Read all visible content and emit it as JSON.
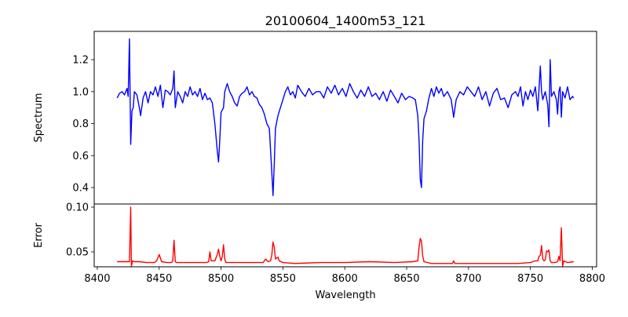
{
  "chart_data": {
    "type": "line",
    "title": "20100604_1400m53_121",
    "xlabel": "Wavelength",
    "xlim": [
      8397.5,
      8803.5
    ],
    "xticks": [
      8400,
      8450,
      8500,
      8550,
      8600,
      8650,
      8700,
      8750,
      8800
    ],
    "xtick_labels": [
      "8400",
      "8450",
      "8500",
      "8550",
      "8600",
      "8650",
      "8700",
      "8750",
      "8800"
    ],
    "panels": [
      {
        "ylabel": "Spectrum",
        "ylim": [
          0.297,
          1.377
        ],
        "yticks": [
          0.4,
          0.6,
          0.8,
          1.0,
          1.2
        ],
        "ytick_labels": [
          "0.4",
          "0.6",
          "0.8",
          "1.0",
          "1.2"
        ],
        "color": "#0000ff",
        "x": [
          8416,
          8418,
          8420,
          8422,
          8424,
          8425,
          8426,
          8427,
          8428,
          8429,
          8430,
          8432,
          8434,
          8435,
          8437,
          8439,
          8441,
          8443,
          8445,
          8447,
          8449,
          8451,
          8453,
          8455,
          8457,
          8459,
          8461,
          8462,
          8463,
          8465,
          8467,
          8469,
          8471,
          8473,
          8475,
          8477,
          8479,
          8481,
          8483,
          8485,
          8487,
          8489,
          8491,
          8493,
          8495,
          8497,
          8498,
          8499,
          8500,
          8502,
          8503,
          8505,
          8507,
          8509,
          8511,
          8513,
          8515,
          8517,
          8519,
          8521,
          8523,
          8525,
          8527,
          8529,
          8531,
          8533,
          8535,
          8537,
          8539,
          8541,
          8542,
          8543,
          8544,
          8546,
          8548,
          8550,
          8552,
          8554,
          8556,
          8558,
          8560,
          8562,
          8565,
          8568,
          8571,
          8574,
          8577,
          8580,
          8583,
          8586,
          8589,
          8592,
          8595,
          8598,
          8601,
          8604,
          8607,
          8610,
          8613,
          8616,
          8619,
          8622,
          8625,
          8628,
          8631,
          8634,
          8637,
          8640,
          8643,
          8646,
          8649,
          8652,
          8655,
          8657,
          8659,
          8660,
          8661,
          8662,
          8663,
          8664,
          8666,
          8668,
          8670,
          8672,
          8674,
          8676,
          8678,
          8680,
          8683,
          8686,
          8688,
          8690,
          8693,
          8696,
          8699,
          8702,
          8705,
          8708,
          8711,
          8714,
          8717,
          8720,
          8723,
          8726,
          8729,
          8732,
          8735,
          8738,
          8740,
          8742,
          8744,
          8746,
          8748,
          8750,
          8752,
          8754,
          8756,
          8758,
          8759,
          8760,
          8762,
          8764,
          8765,
          8766,
          8767,
          8769,
          8771,
          8772,
          8773,
          8774,
          8775,
          8776,
          8778,
          8780,
          8782,
          8784,
          8785
        ],
        "y": [
          0.96,
          0.99,
          1.0,
          0.98,
          1.02,
          0.97,
          1.33,
          0.67,
          0.88,
          0.9,
          1.0,
          0.98,
          0.9,
          0.85,
          0.96,
          1.0,
          0.93,
          1.0,
          0.98,
          1.03,
          0.97,
          1.04,
          0.9,
          1.01,
          1.0,
          0.98,
          1.02,
          1.13,
          0.9,
          1.0,
          0.97,
          0.93,
          1.0,
          0.97,
          1.03,
          0.98,
          1.0,
          0.97,
          1.02,
          0.95,
          0.99,
          0.95,
          0.96,
          0.93,
          0.8,
          0.63,
          0.56,
          0.7,
          0.87,
          0.9,
          1.0,
          1.05,
          1.0,
          0.97,
          0.93,
          0.91,
          0.97,
          0.99,
          1.0,
          1.03,
          0.98,
          1.0,
          0.97,
          0.96,
          0.92,
          0.9,
          0.86,
          0.8,
          0.77,
          0.5,
          0.35,
          0.55,
          0.77,
          0.85,
          0.9,
          0.95,
          1.0,
          1.03,
          0.98,
          1.0,
          0.96,
          1.04,
          1.0,
          0.97,
          1.02,
          0.98,
          1.0,
          1.0,
          0.96,
          1.03,
          0.99,
          1.04,
          0.98,
          1.02,
          0.97,
          1.05,
          1.0,
          0.96,
          1.01,
          0.97,
          1.03,
          0.97,
          0.99,
          0.95,
          1.0,
          0.94,
          1.01,
          0.97,
          0.93,
          0.99,
          0.95,
          0.97,
          0.96,
          0.95,
          0.85,
          0.7,
          0.45,
          0.4,
          0.7,
          0.83,
          0.88,
          0.96,
          1.02,
          0.97,
          1.03,
          0.99,
          1.02,
          0.97,
          1.0,
          0.95,
          0.84,
          0.95,
          1.0,
          0.98,
          1.03,
          1.0,
          0.97,
          1.03,
          0.95,
          1.0,
          0.91,
          0.99,
          1.02,
          0.95,
          0.96,
          0.9,
          0.98,
          1.0,
          0.97,
          1.03,
          0.91,
          1.0,
          0.95,
          1.01,
          0.97,
          1.03,
          0.88,
          1.16,
          1.0,
          0.95,
          1.0,
          0.92,
          0.78,
          1.2,
          0.97,
          1.0,
          0.95,
          0.86,
          1.0,
          1.03,
          0.84,
          1.0,
          0.96,
          1.03,
          0.95,
          0.97,
          0.96
        ]
      },
      {
        "ylabel": "Error",
        "ylim": [
          0.0333,
          0.1035
        ],
        "yticks": [
          0.05,
          0.1
        ],
        "ytick_labels": [
          "0.05",
          "0.10"
        ],
        "color": "#ff0000",
        "x": [
          8416,
          8420,
          8424,
          8426,
          8427,
          8427.6,
          8428.5,
          8430,
          8434,
          8440,
          8446,
          8448,
          8450,
          8452,
          8456,
          8460,
          8461,
          8462,
          8463,
          8464,
          8470,
          8476,
          8482,
          8488,
          8490,
          8491,
          8492,
          8495,
          8497,
          8498,
          8499,
          8500,
          8501,
          8502,
          8503,
          8504,
          8510,
          8520,
          8530,
          8534,
          8536,
          8538,
          8540,
          8541,
          8542,
          8543,
          8544,
          8545,
          8546,
          8547,
          8550,
          8560,
          8580,
          8600,
          8620,
          8640,
          8655,
          8659,
          8660,
          8661,
          8662,
          8663,
          8664,
          8670,
          8680,
          8687,
          8688,
          8689,
          8700,
          8720,
          8740,
          8750,
          8754,
          8756,
          8757,
          8758,
          8759,
          8760,
          8761,
          8762,
          8763,
          8764,
          8765,
          8766,
          8767,
          8770,
          8772,
          8773,
          8774,
          8775,
          8776,
          8777,
          8780,
          8785
        ],
        "y": [
          0.039,
          0.039,
          0.039,
          0.039,
          0.1,
          0.034,
          0.04,
          0.039,
          0.039,
          0.038,
          0.038,
          0.04,
          0.047,
          0.039,
          0.038,
          0.038,
          0.04,
          0.063,
          0.039,
          0.038,
          0.038,
          0.038,
          0.038,
          0.038,
          0.039,
          0.05,
          0.04,
          0.04,
          0.047,
          0.053,
          0.045,
          0.04,
          0.045,
          0.058,
          0.042,
          0.038,
          0.038,
          0.038,
          0.038,
          0.038,
          0.042,
          0.039,
          0.04,
          0.046,
          0.061,
          0.055,
          0.042,
          0.043,
          0.044,
          0.04,
          0.038,
          0.037,
          0.038,
          0.038,
          0.039,
          0.038,
          0.039,
          0.04,
          0.055,
          0.065,
          0.062,
          0.045,
          0.039,
          0.037,
          0.037,
          0.037,
          0.04,
          0.037,
          0.037,
          0.037,
          0.037,
          0.038,
          0.04,
          0.04,
          0.045,
          0.046,
          0.057,
          0.042,
          0.04,
          0.041,
          0.051,
          0.05,
          0.052,
          0.04,
          0.038,
          0.038,
          0.039,
          0.045,
          0.04,
          0.077,
          0.034,
          0.04,
          0.038,
          0.039
        ]
      }
    ]
  }
}
